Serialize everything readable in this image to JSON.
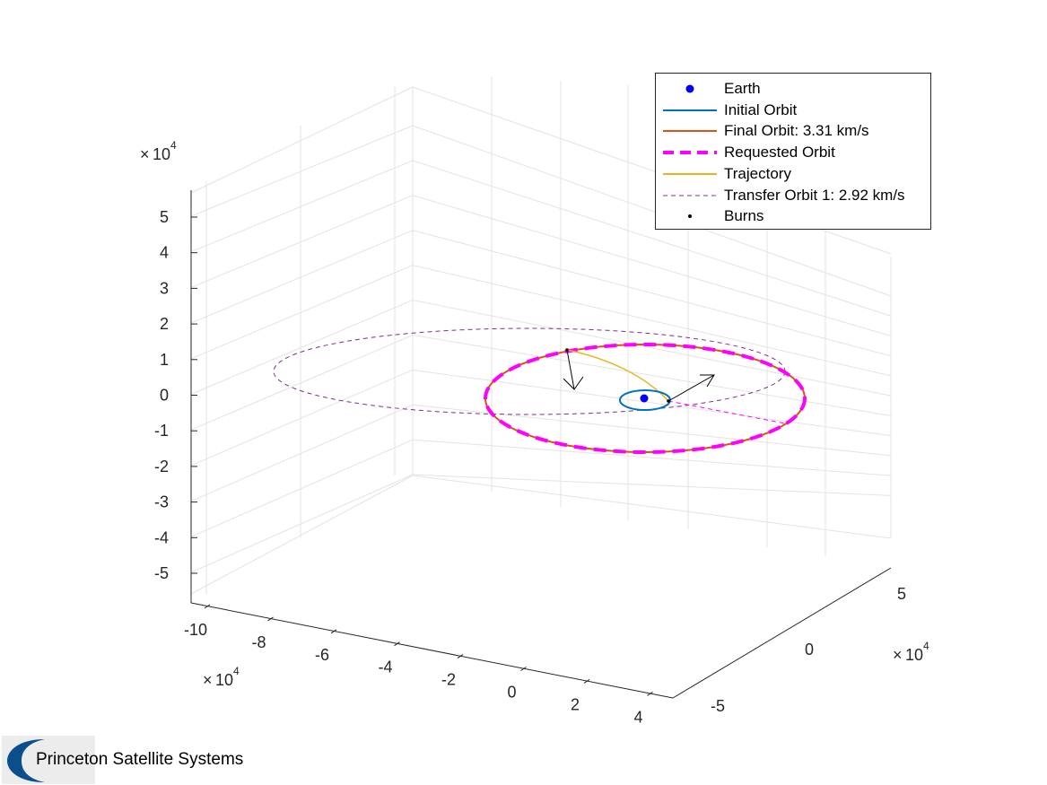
{
  "chart_data": {
    "type": "line",
    "projection": "3d",
    "axes": {
      "x": {
        "ticks": [
          "-10",
          "-8",
          "-6",
          "-4",
          "-2",
          "0",
          "2",
          "4"
        ],
        "multiplier": "10",
        "multiplier_exp": "4"
      },
      "y": {
        "ticks": [
          "-5",
          "0",
          "5"
        ],
        "multiplier": "10",
        "multiplier_exp": "4"
      },
      "z": {
        "ticks": [
          "5",
          "4",
          "3",
          "2",
          "1",
          "0",
          "-1",
          "-2",
          "-3",
          "-4",
          "-5"
        ],
        "multiplier": "10",
        "multiplier_exp": "4"
      },
      "grid": true
    },
    "legend": {
      "placement": "top-right",
      "entries": [
        {
          "label": "Earth",
          "color": "#0000ff",
          "style": "marker"
        },
        {
          "label": "Initial Orbit",
          "color": "#0072bd",
          "style": "solid"
        },
        {
          "label": "Final Orbit: 3.31 km/s",
          "color": "#d95319",
          "style": "solid"
        },
        {
          "label": "Requested Orbit",
          "color": "#ff00ff",
          "style": "thick-dashed"
        },
        {
          "label": "Trajectory",
          "color": "#edb120",
          "style": "solid"
        },
        {
          "label": "Transfer Orbit 1: 2.92 km/s",
          "color": "#7e2f8e",
          "style": "thin-dashed"
        },
        {
          "label": "Burns",
          "color": "#000000",
          "style": "dot"
        }
      ]
    }
  },
  "branding": {
    "company": "Princeton Satellite Systems",
    "logo_color": "#0a4f8c"
  }
}
